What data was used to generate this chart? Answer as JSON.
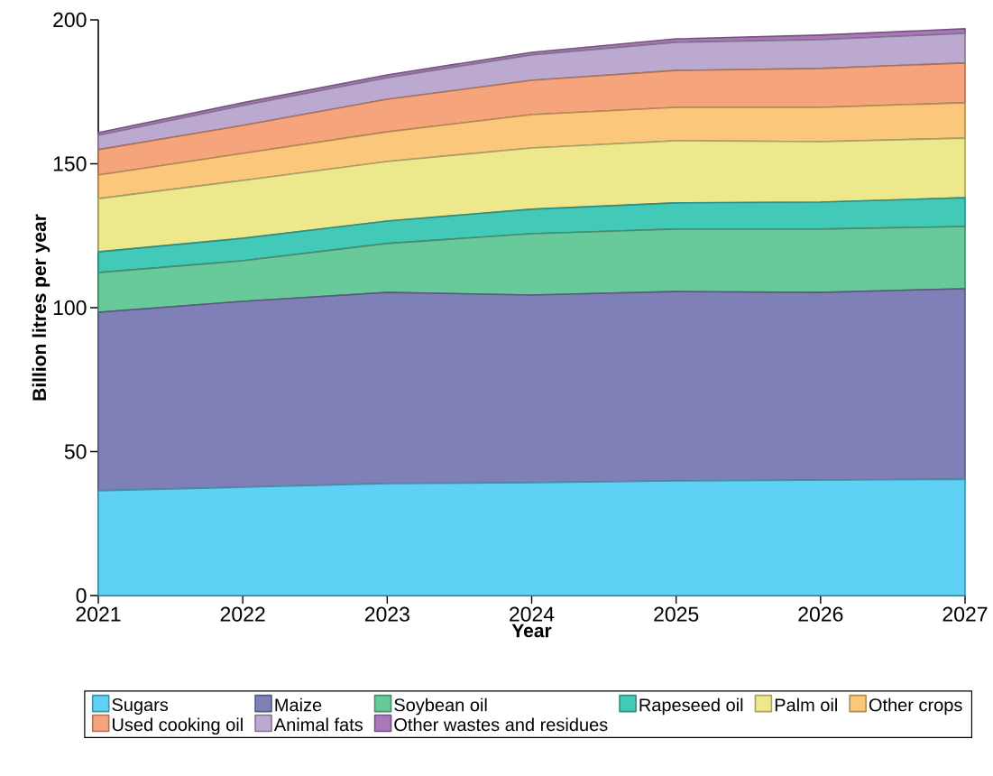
{
  "chart_data": {
    "type": "area",
    "stacked": true,
    "xlabel": "Year",
    "ylabel": "Billion litres per year",
    "x": [
      2021,
      2022,
      2023,
      2024,
      2025,
      2026,
      2027
    ],
    "xlim": [
      2021,
      2027
    ],
    "xticks": [
      2021,
      2022,
      2023,
      2024,
      2025,
      2026,
      2027
    ],
    "ylim": [
      0,
      200
    ],
    "yticks": [
      0,
      50,
      100,
      150,
      200
    ],
    "grid": false,
    "legend": "bottom",
    "series": [
      {
        "name": "Sugars",
        "color": "#5fd1f5",
        "values": [
          36.4,
          37.6,
          38.9,
          39.2,
          39.8,
          40.1,
          40.4
        ]
      },
      {
        "name": "Maize",
        "color": "#8080b8",
        "values": [
          62.0,
          64.6,
          66.4,
          65.2,
          65.8,
          65.2,
          66.2
        ]
      },
      {
        "name": "Soybean oil",
        "color": "#68c99a",
        "values": [
          13.8,
          14.1,
          17.0,
          21.3,
          21.7,
          22.0,
          21.6
        ]
      },
      {
        "name": "Rapeseed oil",
        "color": "#43c9b8",
        "values": [
          7.2,
          7.8,
          7.8,
          8.5,
          9.1,
          9.4,
          10.0
        ]
      },
      {
        "name": "Palm oil",
        "color": "#eee88c",
        "values": [
          18.5,
          20.1,
          20.7,
          21.3,
          21.6,
          21.0,
          20.7
        ]
      },
      {
        "name": "Other crops",
        "color": "#fbc77a",
        "values": [
          8.2,
          9.4,
          10.3,
          11.6,
          11.6,
          11.9,
          12.3
        ]
      },
      {
        "name": "Used cooking oil",
        "color": "#f6a47c",
        "values": [
          8.8,
          9.7,
          11.3,
          11.9,
          12.8,
          13.5,
          13.8
        ]
      },
      {
        "name": "Animal fats",
        "color": "#bba9cf",
        "values": [
          5.0,
          6.9,
          7.5,
          8.8,
          9.8,
          10.0,
          10.3
        ]
      },
      {
        "name": "Other wastes and residues",
        "color": "#a878b8",
        "values": [
          0.9,
          1.0,
          1.0,
          0.9,
          1.2,
          1.6,
          1.6
        ]
      }
    ]
  }
}
